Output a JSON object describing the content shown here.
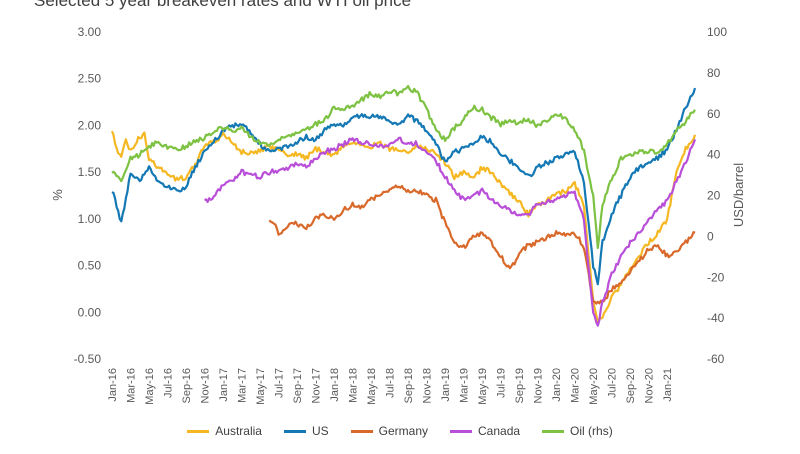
{
  "chart_data": {
    "type": "line",
    "title": "Selected 5 year breakeven rates and WTI oil price",
    "ylabel": "%",
    "y2label": "USD/barrel",
    "ylim": [
      -0.5,
      3.0
    ],
    "y2lim": [
      -60,
      100
    ],
    "yticks": [
      "3.00",
      "2.50",
      "2.00",
      "1.50",
      "1.00",
      "0.50",
      "0.00",
      "-0.50"
    ],
    "y2ticks": [
      "100",
      "80",
      "60",
      "40",
      "20",
      "0",
      "-20",
      "-40",
      "-60"
    ],
    "xrange": [
      0,
      63
    ],
    "xticks": [
      "Jan-16",
      "Mar-16",
      "May-16",
      "Jul-16",
      "Sep-16",
      "Nov-16",
      "Jan-17",
      "Mar-17",
      "May-17",
      "Jul-17",
      "Sep-17",
      "Nov-17",
      "Jan-18",
      "Mar-18",
      "May-18",
      "Jul-18",
      "Sep-18",
      "Nov-18",
      "Jan-19",
      "Mar-19",
      "May-19",
      "Jul-19",
      "Sep-19",
      "Nov-19",
      "Jan-20",
      "Mar-20",
      "May-20",
      "Jul-20",
      "Sep-20",
      "Nov-20",
      "Jan-21"
    ],
    "grid": false,
    "legend_position": "bottom",
    "series": [
      {
        "name": "Australia",
        "color": "#f5b822",
        "axis": "left",
        "points": [
          [
            0,
            1.95
          ],
          [
            0.5,
            1.75
          ],
          [
            1,
            1.65
          ],
          [
            1.5,
            1.85
          ],
          [
            2,
            1.72
          ],
          [
            3,
            1.88
          ],
          [
            3.5,
            1.9
          ],
          [
            4,
            1.65
          ],
          [
            5,
            1.55
          ],
          [
            6,
            1.48
          ],
          [
            7,
            1.42
          ],
          [
            8,
            1.45
          ],
          [
            9,
            1.58
          ],
          [
            10,
            1.78
          ],
          [
            11,
            1.82
          ],
          [
            12,
            1.9
          ],
          [
            13,
            1.82
          ],
          [
            14,
            1.72
          ],
          [
            15,
            1.7
          ],
          [
            16,
            1.72
          ],
          [
            17,
            1.78
          ],
          [
            18,
            1.75
          ],
          [
            19,
            1.68
          ],
          [
            20,
            1.7
          ],
          [
            21,
            1.65
          ],
          [
            22,
            1.75
          ],
          [
            23,
            1.72
          ],
          [
            24,
            1.68
          ],
          [
            25,
            1.78
          ],
          [
            26,
            1.82
          ],
          [
            27,
            1.8
          ],
          [
            28,
            1.78
          ],
          [
            29,
            1.8
          ],
          [
            30,
            1.75
          ],
          [
            31,
            1.75
          ],
          [
            32,
            1.72
          ],
          [
            33,
            1.78
          ],
          [
            34,
            1.75
          ],
          [
            35,
            1.7
          ],
          [
            36,
            1.6
          ],
          [
            37,
            1.45
          ],
          [
            38,
            1.5
          ],
          [
            39,
            1.42
          ],
          [
            40,
            1.55
          ],
          [
            41,
            1.5
          ],
          [
            42,
            1.38
          ],
          [
            43,
            1.28
          ],
          [
            44,
            1.18
          ],
          [
            45,
            1.05
          ],
          [
            46,
            1.15
          ],
          [
            47,
            1.2
          ],
          [
            48,
            1.25
          ],
          [
            49,
            1.3
          ],
          [
            50,
            1.38
          ],
          [
            51,
            1.15
          ],
          [
            52,
            0.1
          ],
          [
            52.5,
            -0.1
          ],
          [
            53,
            -0.05
          ],
          [
            54,
            0.15
          ],
          [
            55,
            0.3
          ],
          [
            56,
            0.45
          ],
          [
            57,
            0.6
          ],
          [
            58,
            0.75
          ],
          [
            59,
            0.85
          ],
          [
            60,
            1.0
          ],
          [
            61,
            1.5
          ],
          [
            62,
            1.75
          ],
          [
            63,
            1.9
          ]
        ]
      },
      {
        "name": "US",
        "color": "#1478b4",
        "axis": "left",
        "points": [
          [
            0,
            1.3
          ],
          [
            0.5,
            1.15
          ],
          [
            1,
            0.95
          ],
          [
            1.5,
            1.2
          ],
          [
            2,
            1.5
          ],
          [
            3,
            1.42
          ],
          [
            4,
            1.55
          ],
          [
            5,
            1.4
          ],
          [
            6,
            1.35
          ],
          [
            7,
            1.3
          ],
          [
            8,
            1.35
          ],
          [
            9,
            1.55
          ],
          [
            10,
            1.72
          ],
          [
            11,
            1.82
          ],
          [
            12,
            1.95
          ],
          [
            13,
            2.0
          ],
          [
            14,
            2.02
          ],
          [
            15,
            1.92
          ],
          [
            16,
            1.8
          ],
          [
            17,
            1.72
          ],
          [
            18,
            1.75
          ],
          [
            19,
            1.78
          ],
          [
            20,
            1.82
          ],
          [
            21,
            1.88
          ],
          [
            22,
            1.85
          ],
          [
            23,
            1.95
          ],
          [
            24,
            2.0
          ],
          [
            25,
            2.0
          ],
          [
            26,
            2.08
          ],
          [
            27,
            2.12
          ],
          [
            28,
            2.1
          ],
          [
            29,
            2.08
          ],
          [
            30,
            2.05
          ],
          [
            31,
            2.02
          ],
          [
            32,
            2.1
          ],
          [
            33,
            2.05
          ],
          [
            34,
            1.95
          ],
          [
            35,
            1.8
          ],
          [
            36,
            1.6
          ],
          [
            37,
            1.72
          ],
          [
            38,
            1.75
          ],
          [
            39,
            1.82
          ],
          [
            40,
            1.88
          ],
          [
            41,
            1.82
          ],
          [
            42,
            1.7
          ],
          [
            43,
            1.62
          ],
          [
            44,
            1.55
          ],
          [
            45,
            1.45
          ],
          [
            46,
            1.55
          ],
          [
            47,
            1.6
          ],
          [
            48,
            1.65
          ],
          [
            49,
            1.68
          ],
          [
            50,
            1.72
          ],
          [
            51,
            1.4
          ],
          [
            52,
            0.5
          ],
          [
            52.5,
            0.3
          ],
          [
            53,
            0.75
          ],
          [
            54,
            1.05
          ],
          [
            55,
            1.25
          ],
          [
            56,
            1.45
          ],
          [
            57,
            1.55
          ],
          [
            58,
            1.6
          ],
          [
            59,
            1.65
          ],
          [
            60,
            1.75
          ],
          [
            61,
            1.95
          ],
          [
            62,
            2.2
          ],
          [
            63,
            2.4
          ]
        ]
      },
      {
        "name": "Germany",
        "color": "#d9692a",
        "axis": "left",
        "points": [
          [
            17,
            1.0
          ],
          [
            17.5,
            0.95
          ],
          [
            18,
            0.85
          ],
          [
            19,
            0.92
          ],
          [
            20,
            0.95
          ],
          [
            21,
            0.9
          ],
          [
            22,
            1.02
          ],
          [
            23,
            1.05
          ],
          [
            24,
            1.0
          ],
          [
            25,
            1.1
          ],
          [
            26,
            1.15
          ],
          [
            27,
            1.12
          ],
          [
            28,
            1.2
          ],
          [
            29,
            1.25
          ],
          [
            30,
            1.3
          ],
          [
            31,
            1.35
          ],
          [
            32,
            1.3
          ],
          [
            33,
            1.3
          ],
          [
            34,
            1.25
          ],
          [
            35,
            1.2
          ],
          [
            36,
            0.95
          ],
          [
            37,
            0.75
          ],
          [
            38,
            0.7
          ],
          [
            39,
            0.8
          ],
          [
            40,
            0.85
          ],
          [
            41,
            0.75
          ],
          [
            42,
            0.6
          ],
          [
            43,
            0.45
          ],
          [
            44,
            0.62
          ],
          [
            45,
            0.72
          ],
          [
            46,
            0.75
          ],
          [
            47,
            0.8
          ],
          [
            48,
            0.85
          ],
          [
            49,
            0.82
          ],
          [
            50,
            0.85
          ],
          [
            51,
            0.7
          ],
          [
            52,
            0.12
          ],
          [
            52.5,
            0.1
          ],
          [
            53,
            0.1
          ],
          [
            54,
            0.25
          ],
          [
            55,
            0.3
          ],
          [
            56,
            0.45
          ],
          [
            57,
            0.55
          ],
          [
            58,
            0.68
          ],
          [
            59,
            0.7
          ],
          [
            60,
            0.6
          ],
          [
            61,
            0.65
          ],
          [
            62,
            0.75
          ],
          [
            63,
            0.85
          ]
        ]
      },
      {
        "name": "Canada",
        "color": "#b94fd9",
        "axis": "left",
        "points": [
          [
            10,
            1.22
          ],
          [
            10.5,
            1.2
          ],
          [
            11,
            1.25
          ],
          [
            12,
            1.35
          ],
          [
            13,
            1.42
          ],
          [
            14,
            1.5
          ],
          [
            15,
            1.48
          ],
          [
            16,
            1.45
          ],
          [
            17,
            1.5
          ],
          [
            18,
            1.52
          ],
          [
            19,
            1.55
          ],
          [
            20,
            1.6
          ],
          [
            21,
            1.55
          ],
          [
            22,
            1.65
          ],
          [
            23,
            1.72
          ],
          [
            24,
            1.75
          ],
          [
            25,
            1.8
          ],
          [
            26,
            1.85
          ],
          [
            27,
            1.82
          ],
          [
            28,
            1.8
          ],
          [
            29,
            1.78
          ],
          [
            30,
            1.8
          ],
          [
            31,
            1.85
          ],
          [
            32,
            1.82
          ],
          [
            33,
            1.8
          ],
          [
            34,
            1.7
          ],
          [
            35,
            1.62
          ],
          [
            36,
            1.45
          ],
          [
            37,
            1.3
          ],
          [
            38,
            1.2
          ],
          [
            39,
            1.25
          ],
          [
            40,
            1.3
          ],
          [
            41,
            1.22
          ],
          [
            42,
            1.15
          ],
          [
            43,
            1.1
          ],
          [
            44,
            1.02
          ],
          [
            45,
            1.05
          ],
          [
            46,
            1.15
          ],
          [
            47,
            1.18
          ],
          [
            48,
            1.2
          ],
          [
            49,
            1.25
          ],
          [
            50,
            1.28
          ],
          [
            51,
            1.0
          ],
          [
            52,
            0.0
          ],
          [
            52.5,
            -0.15
          ],
          [
            53,
            0.1
          ],
          [
            54,
            0.4
          ],
          [
            55,
            0.6
          ],
          [
            56,
            0.75
          ],
          [
            57,
            0.85
          ],
          [
            58,
            1.0
          ],
          [
            59,
            1.1
          ],
          [
            60,
            1.2
          ],
          [
            61,
            1.4
          ],
          [
            62,
            1.6
          ],
          [
            63,
            1.85
          ]
        ]
      },
      {
        "name": "Oil (rhs)",
        "color": "#7dc242",
        "axis": "right",
        "points": [
          [
            0,
            32
          ],
          [
            0.5,
            30
          ],
          [
            1,
            27
          ],
          [
            1.5,
            33
          ],
          [
            2,
            38
          ],
          [
            3,
            40
          ],
          [
            4,
            44
          ],
          [
            5,
            46
          ],
          [
            6,
            44
          ],
          [
            7,
            42
          ],
          [
            8,
            44
          ],
          [
            9,
            47
          ],
          [
            10,
            48
          ],
          [
            11,
            52
          ],
          [
            12,
            53
          ],
          [
            13,
            52
          ],
          [
            14,
            53
          ],
          [
            15,
            49
          ],
          [
            16,
            46
          ],
          [
            17,
            45
          ],
          [
            18,
            47
          ],
          [
            19,
            49
          ],
          [
            20,
            50
          ],
          [
            21,
            52
          ],
          [
            22,
            55
          ],
          [
            23,
            57
          ],
          [
            24,
            63
          ],
          [
            25,
            62
          ],
          [
            26,
            64
          ],
          [
            27,
            67
          ],
          [
            28,
            70
          ],
          [
            29,
            68
          ],
          [
            30,
            71
          ],
          [
            31,
            70
          ],
          [
            32,
            73
          ],
          [
            33,
            70
          ],
          [
            34,
            62
          ],
          [
            35,
            52
          ],
          [
            36,
            47
          ],
          [
            37,
            53
          ],
          [
            38,
            57
          ],
          [
            39,
            63
          ],
          [
            40,
            62
          ],
          [
            41,
            58
          ],
          [
            42,
            55
          ],
          [
            43,
            56
          ],
          [
            44,
            56
          ],
          [
            45,
            57
          ],
          [
            46,
            54
          ],
          [
            47,
            56
          ],
          [
            48,
            60
          ],
          [
            49,
            58
          ],
          [
            50,
            52
          ],
          [
            51,
            42
          ],
          [
            52,
            20
          ],
          [
            52.5,
            -5
          ],
          [
            53,
            15
          ],
          [
            54,
            28
          ],
          [
            55,
            38
          ],
          [
            56,
            40
          ],
          [
            57,
            41
          ],
          [
            58,
            42
          ],
          [
            59,
            40
          ],
          [
            60,
            45
          ],
          [
            61,
            52
          ],
          [
            62,
            56
          ],
          [
            63,
            62
          ]
        ]
      }
    ]
  }
}
